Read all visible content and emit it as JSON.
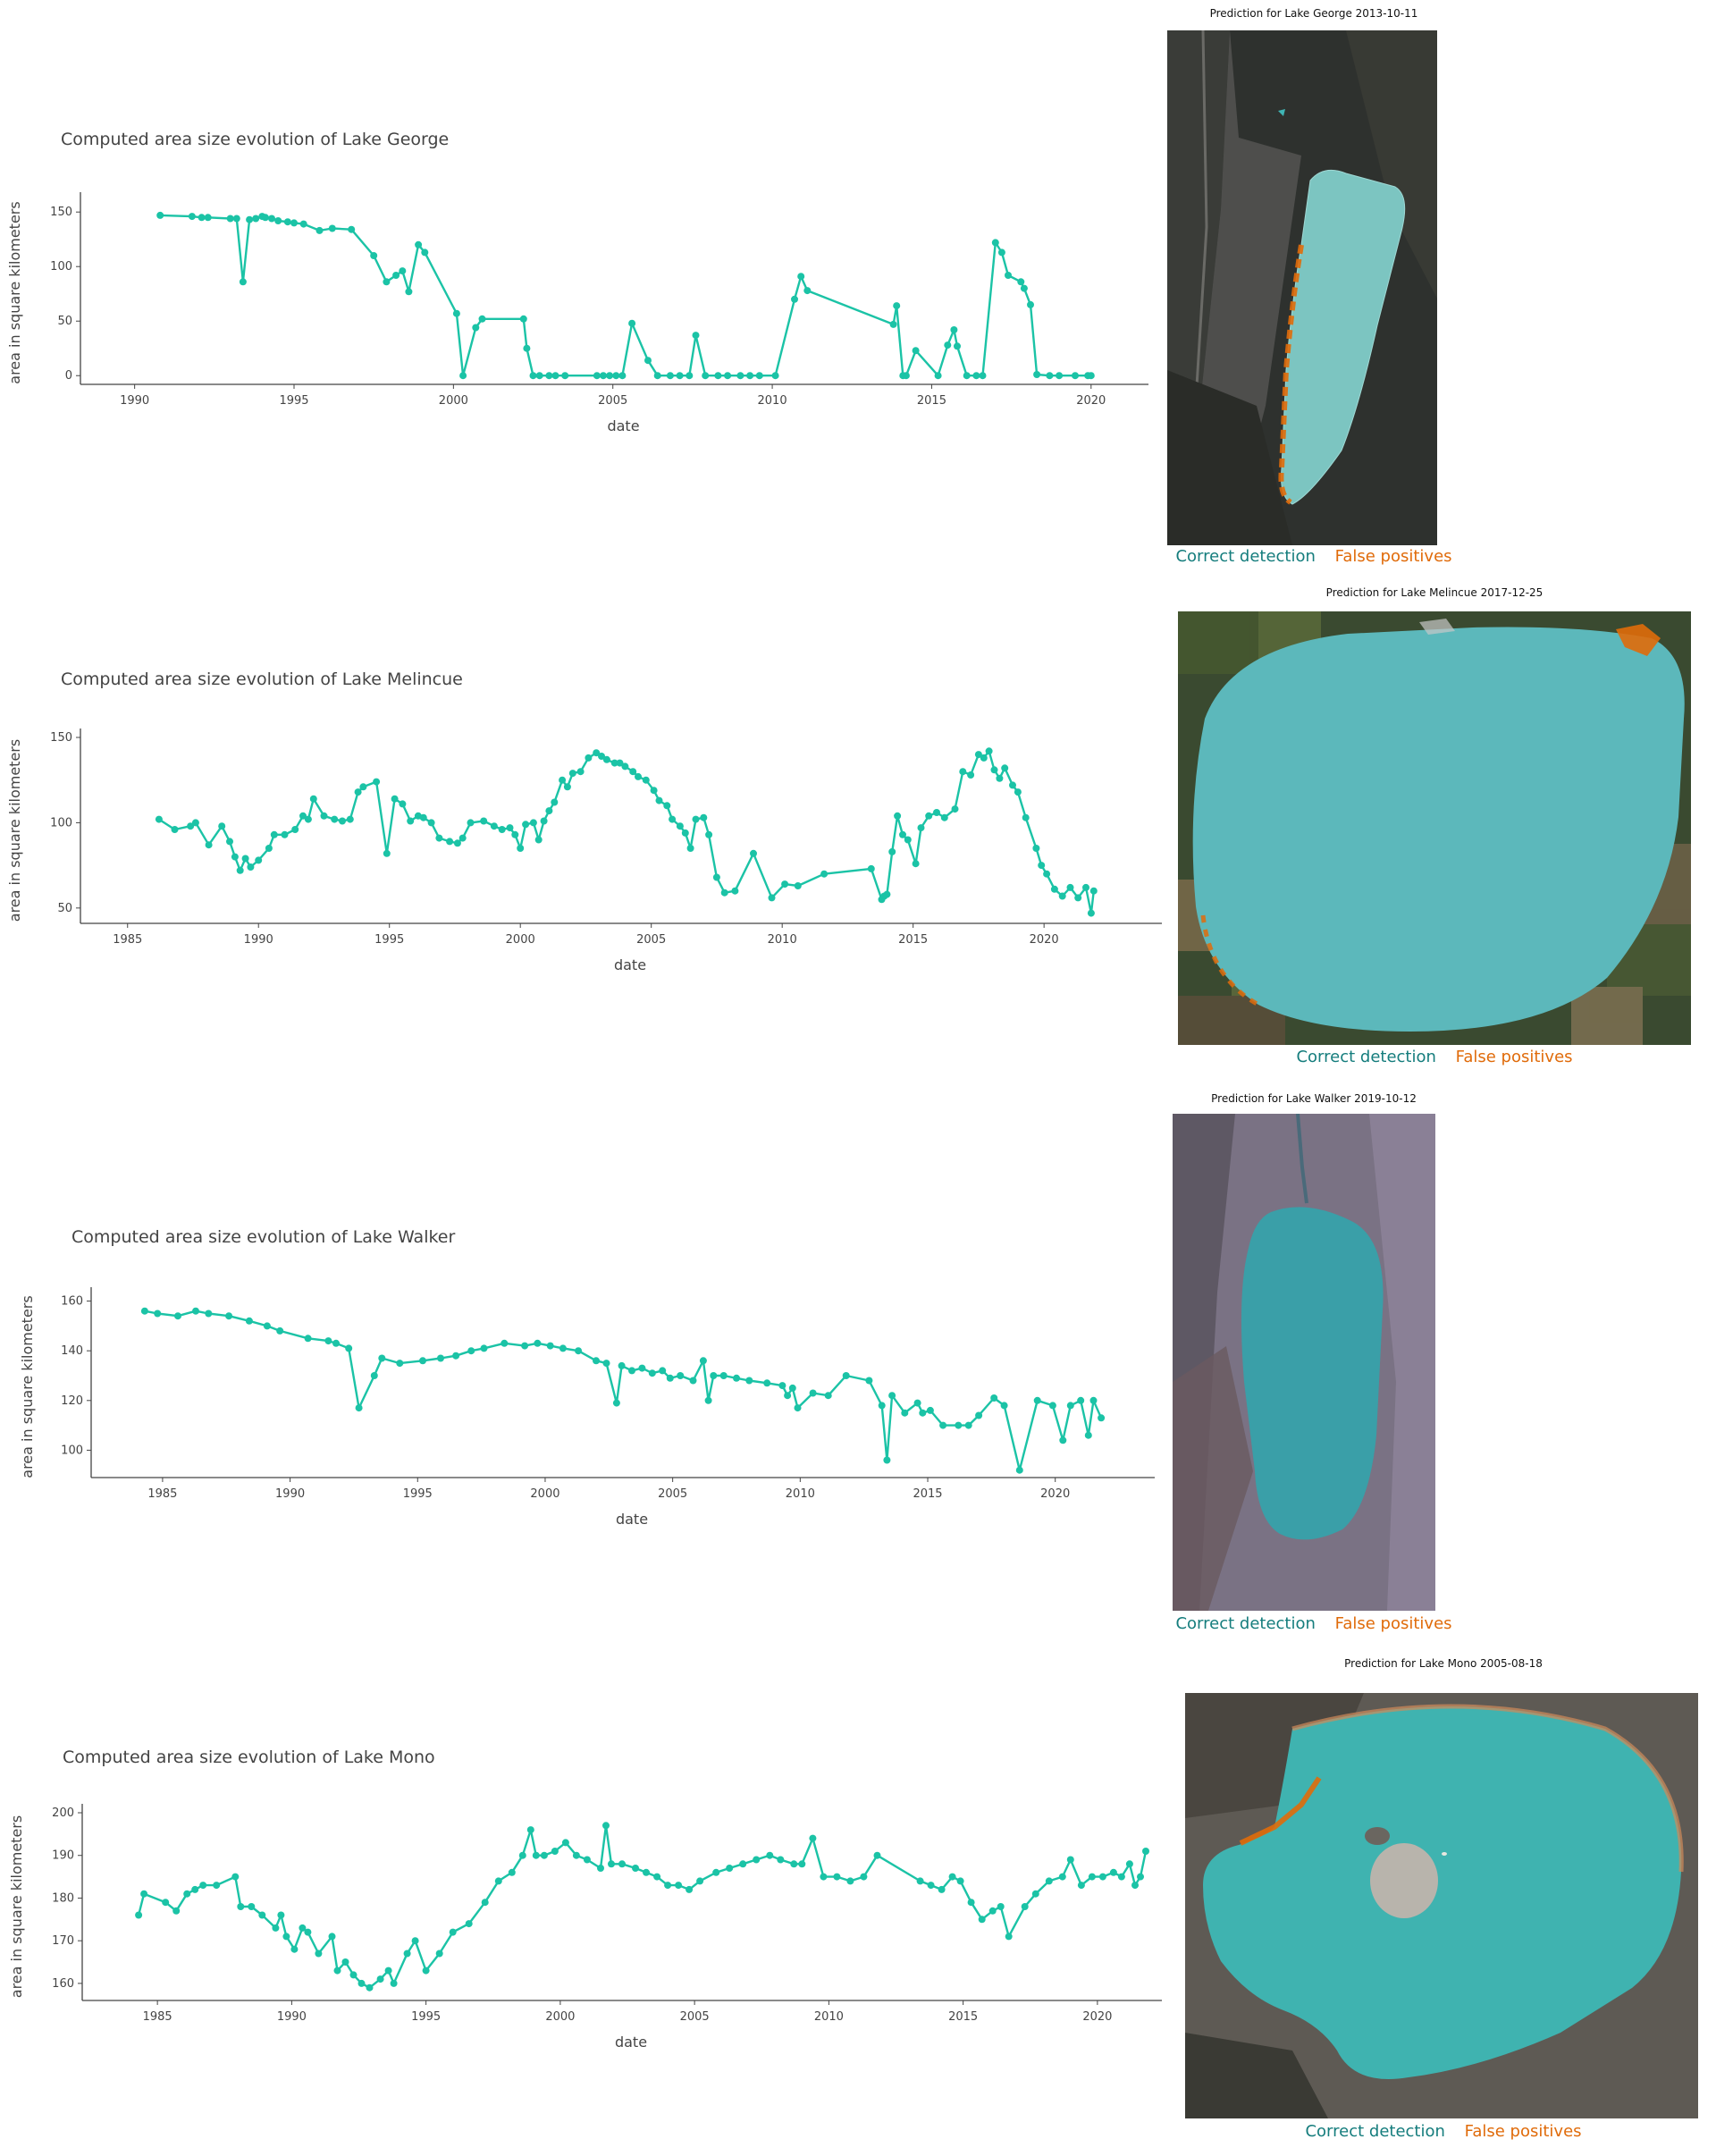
{
  "colors": {
    "series": "#1bc3a6",
    "axis": "#444444",
    "correct": "#157d7d",
    "false_pos": "#e06b0a",
    "water": "#3fb5b5"
  },
  "legend": {
    "correct": "Correct detection",
    "false_positives": "False positives"
  },
  "chart_data": [
    {
      "type": "line",
      "title": "Computed area size evolution of Lake George",
      "xlabel": "date",
      "ylabel": "area in square kilometers",
      "xlim": [
        1988.3,
        2021.8
      ],
      "ylim": [
        -8,
        160
      ],
      "x_ticks": [
        1990,
        1995,
        2000,
        2005,
        2010,
        2015,
        2020
      ],
      "y_ticks": [
        0,
        50,
        100,
        150
      ],
      "x": [
        1990.8,
        1991.8,
        1992.1,
        1992.3,
        1993.0,
        1993.2,
        1993.4,
        1993.6,
        1993.8,
        1994.0,
        1994.1,
        1994.3,
        1994.5,
        1994.8,
        1995.0,
        1995.3,
        1995.8,
        1996.2,
        1996.8,
        1997.5,
        1997.9,
        1998.2,
        1998.4,
        1998.6,
        1998.9,
        1999.1,
        2000.1,
        2000.3,
        2000.7,
        2000.9,
        2002.2,
        2002.3,
        2002.5,
        2002.7,
        2003.0,
        2003.2,
        2003.5,
        2004.5,
        2004.7,
        2004.9,
        2005.1,
        2005.3,
        2005.6,
        2006.1,
        2006.4,
        2006.8,
        2007.1,
        2007.4,
        2007.6,
        2007.9,
        2008.3,
        2008.6,
        2009.0,
        2009.3,
        2009.6,
        2010.1,
        2010.7,
        2010.9,
        2011.1,
        2013.8,
        2013.9,
        2014.1,
        2014.2,
        2014.5,
        2015.2,
        2015.5,
        2015.7,
        2015.8,
        2016.1,
        2016.4,
        2016.6,
        2017.0,
        2017.2,
        2017.4,
        2017.8,
        2017.9,
        2018.1,
        2018.3,
        2018.7,
        2019.0,
        2019.5,
        2019.9,
        2020.0
      ],
      "values": [
        147,
        146,
        145,
        145,
        144,
        144,
        86,
        143,
        144,
        146,
        145,
        144,
        142,
        141,
        140,
        139,
        133,
        135,
        134,
        110,
        86,
        92,
        96,
        77,
        120,
        113,
        57,
        0,
        44,
        52,
        52,
        25,
        0,
        0,
        0,
        0,
        0,
        0,
        0,
        0,
        0,
        0,
        48,
        14,
        0,
        0,
        0,
        0,
        37,
        0,
        0,
        0,
        0,
        0,
        0,
        0,
        70,
        91,
        78,
        47,
        64,
        0,
        0,
        23,
        0,
        28,
        42,
        27,
        0,
        0,
        0,
        122,
        113,
        92,
        86,
        80,
        65,
        1,
        0,
        0,
        0,
        0,
        0
      ]
    },
    {
      "type": "line",
      "title": "Computed area size evolution of Lake Melincue",
      "xlabel": "date",
      "ylabel": "area in square kilometers",
      "xlim": [
        1983.2,
        2024.5
      ],
      "ylim": [
        41,
        150
      ],
      "x_ticks": [
        1985,
        1990,
        1995,
        2000,
        2005,
        2010,
        2015,
        2020
      ],
      "y_ticks": [
        50,
        100,
        150
      ],
      "x": [
        1986.2,
        1986.8,
        1987.4,
        1987.6,
        1988.1,
        1988.6,
        1988.9,
        1989.1,
        1989.3,
        1989.5,
        1989.7,
        1990.0,
        1990.4,
        1990.6,
        1991.0,
        1991.4,
        1991.7,
        1991.9,
        1992.1,
        1992.5,
        1992.9,
        1993.2,
        1993.5,
        1993.8,
        1994.0,
        1994.5,
        1994.9,
        1995.2,
        1995.5,
        1995.8,
        1996.1,
        1996.3,
        1996.6,
        1996.9,
        1997.3,
        1997.6,
        1997.8,
        1998.1,
        1998.6,
        1999.0,
        1999.3,
        1999.6,
        1999.8,
        2000.0,
        2000.2,
        2000.5,
        2000.7,
        2000.9,
        2001.1,
        2001.3,
        2001.6,
        2001.8,
        2002.0,
        2002.3,
        2002.6,
        2002.9,
        2003.1,
        2003.3,
        2003.6,
        2003.8,
        2004.0,
        2004.3,
        2004.5,
        2004.8,
        2005.1,
        2005.3,
        2005.6,
        2005.8,
        2006.1,
        2006.3,
        2006.5,
        2006.7,
        2007.0,
        2007.2,
        2007.5,
        2007.8,
        2008.2,
        2008.9,
        2009.6,
        2010.1,
        2010.6,
        2011.6,
        2013.4,
        2013.8,
        2013.9,
        2014.0,
        2014.2,
        2014.4,
        2014.6,
        2014.8,
        2015.1,
        2015.3,
        2015.6,
        2015.9,
        2016.2,
        2016.6,
        2016.9,
        2017.2,
        2017.5,
        2017.7,
        2017.9,
        2018.1,
        2018.3,
        2018.5,
        2018.8,
        2019.0,
        2019.3,
        2019.7,
        2019.9,
        2020.1,
        2020.4,
        2020.7,
        2021.0,
        2021.3,
        2021.6,
        2021.8,
        2021.9
      ],
      "values": [
        102,
        96,
        98,
        100,
        87,
        98,
        89,
        80,
        72,
        79,
        74,
        78,
        85,
        93,
        93,
        96,
        104,
        102,
        114,
        104,
        102,
        101,
        102,
        118,
        121,
        124,
        82,
        114,
        111,
        101,
        104,
        103,
        100,
        91,
        89,
        88,
        91,
        100,
        101,
        98,
        96,
        97,
        93,
        85,
        99,
        100,
        90,
        101,
        107,
        112,
        125,
        121,
        129,
        130,
        138,
        141,
        139,
        137,
        135,
        135,
        133,
        130,
        127,
        125,
        119,
        113,
        110,
        102,
        98,
        94,
        85,
        102,
        103,
        93,
        68,
        59,
        60,
        82,
        56,
        64,
        63,
        70,
        73,
        55,
        57,
        58,
        83,
        104,
        93,
        90,
        76,
        97,
        104,
        106,
        103,
        108,
        130,
        128,
        140,
        138,
        142,
        131,
        126,
        132,
        122,
        118,
        103,
        85,
        75,
        70,
        61,
        57,
        62,
        56,
        62,
        47,
        60
      ]
    },
    {
      "type": "line",
      "title": "Computed area size evolution of Lake Walker",
      "xlabel": "date",
      "ylabel": "area in square kilometers",
      "xlim": [
        1982.2,
        2023.9
      ],
      "ylim": [
        89,
        162
      ],
      "x_ticks": [
        1985,
        1990,
        1995,
        2000,
        2005,
        2010,
        2015,
        2020
      ],
      "y_ticks": [
        100,
        120,
        140,
        160
      ],
      "x": [
        1984.3,
        1984.8,
        1985.6,
        1986.3,
        1986.8,
        1987.6,
        1988.4,
        1989.1,
        1989.6,
        1990.7,
        1991.5,
        1991.8,
        1992.3,
        1992.7,
        1993.3,
        1993.6,
        1994.3,
        1995.2,
        1995.9,
        1996.5,
        1997.1,
        1997.6,
        1998.4,
        1999.2,
        1999.7,
        2000.2,
        2000.7,
        2001.3,
        2002.0,
        2002.4,
        2002.8,
        2003.0,
        2003.4,
        2003.8,
        2004.2,
        2004.6,
        2004.9,
        2005.3,
        2005.8,
        2006.2,
        2006.4,
        2006.6,
        2007.0,
        2007.5,
        2008.0,
        2008.7,
        2009.3,
        2009.5,
        2009.7,
        2009.9,
        2010.5,
        2011.1,
        2011.8,
        2012.7,
        2013.2,
        2013.4,
        2013.6,
        2014.1,
        2014.6,
        2014.8,
        2015.1,
        2015.6,
        2016.2,
        2016.6,
        2017.0,
        2017.6,
        2018.0,
        2018.6,
        2019.3,
        2019.9,
        2020.3,
        2020.6,
        2021.0,
        2021.3,
        2021.5,
        2021.8
      ],
      "values": [
        156,
        155,
        154,
        156,
        155,
        154,
        152,
        150,
        148,
        145,
        144,
        143,
        141,
        117,
        130,
        137,
        135,
        136,
        137,
        138,
        140,
        141,
        143,
        142,
        143,
        142,
        141,
        140,
        136,
        135,
        119,
        134,
        132,
        133,
        131,
        132,
        129,
        130,
        128,
        136,
        120,
        130,
        130,
        129,
        128,
        127,
        126,
        122,
        125,
        117,
        123,
        122,
        130,
        128,
        118,
        96,
        122,
        115,
        119,
        115,
        116,
        110,
        110,
        110,
        114,
        121,
        118,
        92,
        120,
        118,
        104,
        118,
        120,
        106,
        120,
        113
      ]
    },
    {
      "type": "line",
      "title": "Computed area size evolution of Lake Mono",
      "xlabel": "date",
      "ylabel": "area in square kilometers",
      "xlim": [
        1982.2,
        2022.4
      ],
      "ylim": [
        156,
        200
      ],
      "x_ticks": [
        1985,
        1990,
        1995,
        2000,
        2005,
        2010,
        2015,
        2020
      ],
      "y_ticks": [
        160,
        170,
        180,
        190,
        200
      ],
      "x": [
        1984.3,
        1984.5,
        1985.3,
        1985.7,
        1986.1,
        1986.4,
        1986.7,
        1987.2,
        1987.9,
        1988.1,
        1988.5,
        1988.9,
        1989.4,
        1989.6,
        1989.8,
        1990.1,
        1990.4,
        1990.6,
        1991.0,
        1991.5,
        1991.7,
        1992.0,
        1992.3,
        1992.6,
        1992.9,
        1993.3,
        1993.6,
        1993.8,
        1994.3,
        1994.6,
        1995.0,
        1995.5,
        1996.0,
        1996.6,
        1997.2,
        1997.7,
        1998.2,
        1998.6,
        1998.9,
        1999.1,
        1999.4,
        1999.8,
        2000.2,
        2000.6,
        2001.0,
        2001.5,
        2001.7,
        2001.9,
        2002.3,
        2002.8,
        2003.2,
        2003.6,
        2004.0,
        2004.4,
        2004.8,
        2005.2,
        2005.8,
        2006.3,
        2006.8,
        2007.3,
        2007.8,
        2008.2,
        2008.7,
        2009.0,
        2009.4,
        2009.8,
        2010.3,
        2010.8,
        2011.3,
        2011.8,
        2013.4,
        2013.8,
        2014.2,
        2014.6,
        2014.9,
        2015.3,
        2015.7,
        2016.1,
        2016.4,
        2016.7,
        2017.3,
        2017.7,
        2018.2,
        2018.7,
        2019.0,
        2019.4,
        2019.8,
        2020.2,
        2020.6,
        2020.9,
        2021.2,
        2021.4,
        2021.6,
        2021.8
      ],
      "values": [
        176,
        181,
        179,
        177,
        181,
        182,
        183,
        183,
        185,
        178,
        178,
        176,
        173,
        176,
        171,
        168,
        173,
        172,
        167,
        171,
        163,
        165,
        162,
        160,
        159,
        161,
        163,
        160,
        167,
        170,
        163,
        167,
        172,
        174,
        179,
        184,
        186,
        190,
        196,
        190,
        190,
        191,
        193,
        190,
        189,
        187,
        197,
        188,
        188,
        187,
        186,
        185,
        183,
        183,
        182,
        184,
        186,
        187,
        188,
        189,
        190,
        189,
        188,
        188,
        194,
        185,
        185,
        184,
        185,
        190,
        184,
        183,
        182,
        185,
        184,
        179,
        175,
        177,
        178,
        171,
        178,
        181,
        184,
        185,
        189,
        183,
        185,
        185,
        186,
        185,
        188,
        183,
        185,
        191
      ]
    }
  ],
  "panels": [
    {
      "title": "Prediction for Lake George 2013-10-11"
    },
    {
      "title": "Prediction for Lake Melincue 2017-12-25"
    },
    {
      "title": "Prediction for Lake Walker 2019-10-12"
    },
    {
      "title": "Prediction for Lake Mono 2005-08-18"
    }
  ]
}
